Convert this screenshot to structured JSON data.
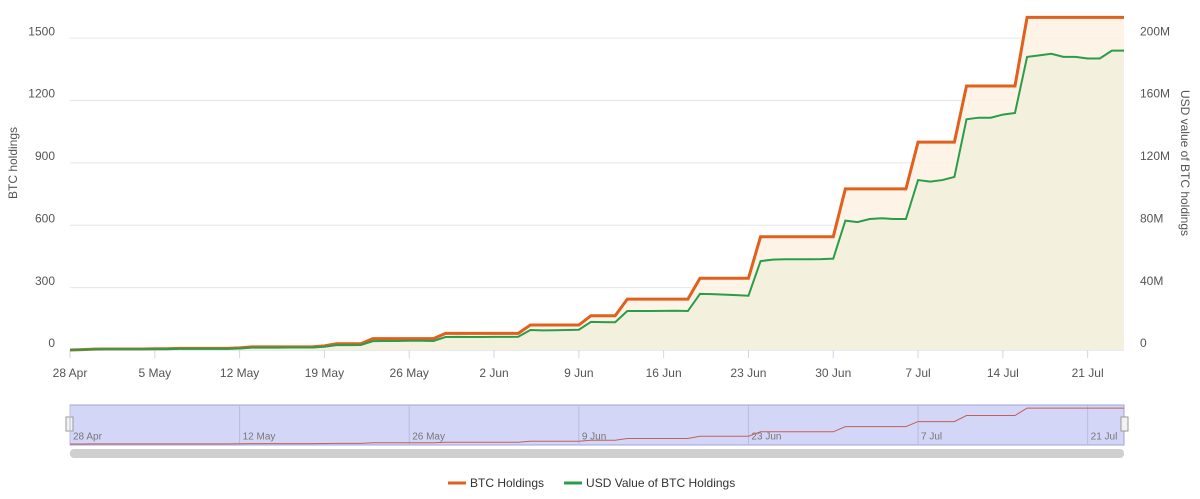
{
  "chart_data": {
    "type": "line",
    "y_label": "BTC holdings",
    "y2_label": "USD value of BTC holdings",
    "categories": [
      "28 Apr",
      null,
      null,
      null,
      null,
      null,
      null,
      "5 May",
      null,
      null,
      null,
      null,
      null,
      null,
      "12 May",
      null,
      null,
      null,
      null,
      null,
      null,
      "19 May",
      null,
      null,
      null,
      null,
      null,
      null,
      "26 May",
      null,
      null,
      null,
      null,
      null,
      null,
      "2 Jun",
      null,
      null,
      null,
      null,
      null,
      null,
      "9 Jun",
      null,
      null,
      null,
      null,
      null,
      null,
      "16 Jun",
      null,
      null,
      null,
      null,
      null,
      null,
      "23 Jun",
      null,
      null,
      null,
      null,
      null,
      null,
      "30 Jun",
      null,
      null,
      null,
      null,
      null,
      null,
      "7 Jul",
      null,
      null,
      null,
      null,
      null,
      null,
      "14 Jul",
      null,
      null,
      null,
      null,
      null,
      null,
      "21 Jul",
      null,
      null,
      null
    ],
    "series": [
      {
        "name": "BTC Holdings",
        "color": "#e0601e",
        "fill": "#fdf1e3",
        "axis": "y",
        "values": [
          0,
          2,
          4,
          5,
          5,
          5,
          5,
          6,
          6,
          8,
          8,
          8,
          8,
          8,
          10,
          15,
          15,
          15,
          15,
          15,
          15,
          20,
          30,
          30,
          30,
          55,
          55,
          55,
          55,
          55,
          55,
          80,
          80,
          80,
          80,
          80,
          80,
          80,
          120,
          120,
          120,
          120,
          120,
          165,
          165,
          165,
          245,
          245,
          245,
          245,
          245,
          245,
          345,
          345,
          345,
          345,
          345,
          545,
          545,
          545,
          545,
          545,
          545,
          545,
          775,
          775,
          775,
          775,
          775,
          775,
          1000,
          1000,
          1000,
          1000,
          1270,
          1270,
          1270,
          1270,
          1270,
          1600,
          1600,
          1600,
          1600,
          1600,
          1600,
          1600,
          1600,
          1600
        ]
      },
      {
        "name": "USD Value of BTC Holdings",
        "color": "#2a9d4a",
        "fill": "#f1efdc",
        "axis": "y2",
        "values": [
          0,
          200000,
          400000,
          500000,
          500000,
          500000,
          500000,
          600000,
          600000,
          800000,
          800000,
          800000,
          800000,
          800000,
          1000000,
          1500000,
          1500000,
          1500000,
          1600000,
          1600000,
          1600000,
          2100000,
          3100000,
          3100000,
          3200000,
          5700000,
          5800000,
          5800000,
          5900000,
          5900000,
          5800000,
          8300000,
          8400000,
          8300000,
          8300000,
          8400000,
          8400000,
          8500000,
          12800000,
          12600000,
          12700000,
          12800000,
          13000000,
          18000000,
          17900000,
          17800000,
          25000000,
          25000000,
          25000000,
          25100000,
          25200000,
          25000000,
          36000000,
          35800000,
          35500000,
          35200000,
          34800000,
          57000000,
          58000000,
          58200000,
          58200000,
          58200000,
          58300000,
          58600000,
          83000000,
          82000000,
          84000000,
          84500000,
          84000000,
          84000000,
          109000000,
          108000000,
          109000000,
          111000000,
          148000000,
          149000000,
          149000000,
          151000000,
          152000000,
          188000000,
          189000000,
          190000000,
          188000000,
          188000000,
          187000000,
          187000000,
          192000000,
          192000000
        ]
      }
    ],
    "ylim": [
      0,
      1650
    ],
    "yticks": [
      0,
      300,
      600,
      900,
      1200,
      1500
    ],
    "y2lim": [
      0,
      220000000
    ],
    "y2ticks": [
      0,
      {
        "value": 40000000,
        "label": "40M"
      },
      {
        "value": 80000000,
        "label": "80M"
      },
      {
        "value": 120000000,
        "label": "120M"
      },
      {
        "value": 160000000,
        "label": "160M"
      },
      {
        "value": 200000000,
        "label": "200M"
      }
    ],
    "grid": true,
    "legend": "bottom"
  }
}
